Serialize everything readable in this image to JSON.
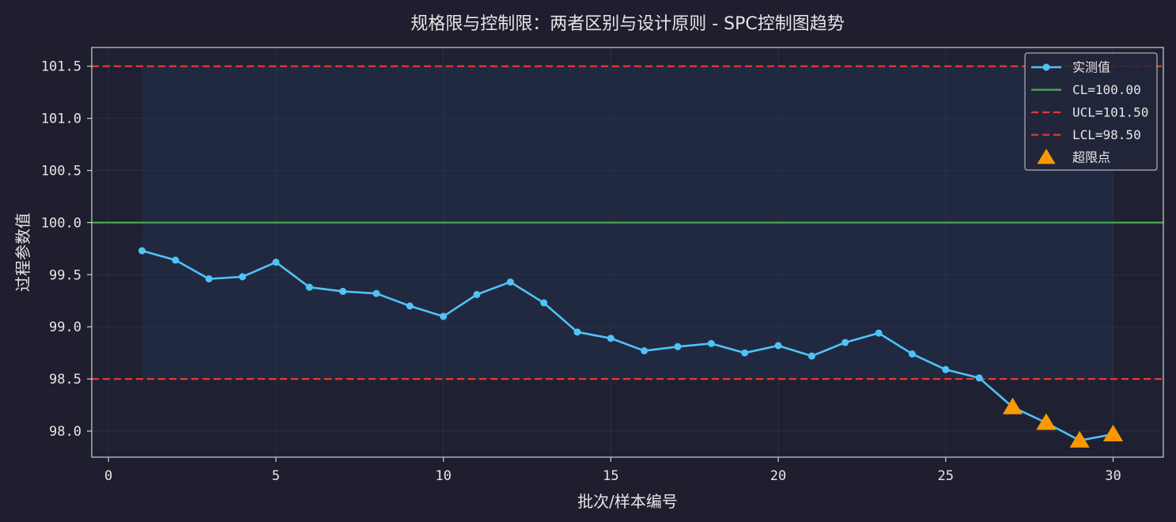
{
  "chart_data": {
    "type": "line",
    "title": "规格限与控制限：两者区别与设计原则 - SPC控制图趋势",
    "xlabel": "批次/样本编号",
    "ylabel": "过程参数值",
    "xlim": [
      -0.5,
      31.5
    ],
    "ylim": [
      97.75,
      101.68
    ],
    "x_ticks": [
      0,
      5,
      10,
      15,
      20,
      25,
      30
    ],
    "x_tick_labels": [
      "0",
      "5",
      "10",
      "15",
      "20",
      "25",
      "30"
    ],
    "y_ticks": [
      98.0,
      98.5,
      99.0,
      99.5,
      100.0,
      100.5,
      101.0,
      101.5
    ],
    "y_tick_labels": [
      "98.0",
      "98.5",
      "99.0",
      "99.5",
      "100.0",
      "100.5",
      "101.0",
      "101.5"
    ],
    "grid": true,
    "legend_position": "top-right",
    "x": [
      1,
      2,
      3,
      4,
      5,
      6,
      7,
      8,
      9,
      10,
      11,
      12,
      13,
      14,
      15,
      16,
      17,
      18,
      19,
      20,
      21,
      22,
      23,
      24,
      25,
      26,
      27,
      28,
      29,
      30
    ],
    "series": [
      {
        "name": "实测值",
        "values": [
          99.73,
          99.64,
          99.46,
          99.48,
          99.62,
          99.38,
          99.34,
          99.32,
          99.2,
          99.1,
          99.31,
          99.43,
          99.23,
          98.95,
          98.89,
          98.77,
          98.81,
          98.84,
          98.75,
          98.82,
          98.72,
          98.85,
          98.94,
          98.74,
          98.59,
          98.51,
          98.23,
          98.08,
          97.91,
          97.97
        ],
        "color": "#4fc3f7"
      }
    ],
    "control_lines": [
      {
        "name": "CL=100.00",
        "value": 100.0,
        "color": "#4caf50",
        "style": "solid"
      },
      {
        "name": "UCL=101.50",
        "value": 101.5,
        "color": "#e53935",
        "style": "dashed"
      },
      {
        "name": "LCL=98.50",
        "value": 98.5,
        "color": "#e53935",
        "style": "dashed"
      }
    ],
    "out_of_limit": {
      "name": "超限点",
      "x": [
        27,
        28,
        29,
        30
      ],
      "values": [
        98.23,
        98.08,
        97.91,
        97.97
      ],
      "color": "#ff9800",
      "marker": "triangle"
    },
    "shaded_band": {
      "x_range": [
        1,
        30
      ],
      "y_range": [
        98.5,
        101.5
      ],
      "color": "#263859"
    }
  },
  "colors": {
    "background": "#1e1e2e",
    "plot_background": "#1f2133",
    "axis": "#cfcfcf",
    "grid": "#2c3045",
    "text": "#e6e6e6"
  }
}
